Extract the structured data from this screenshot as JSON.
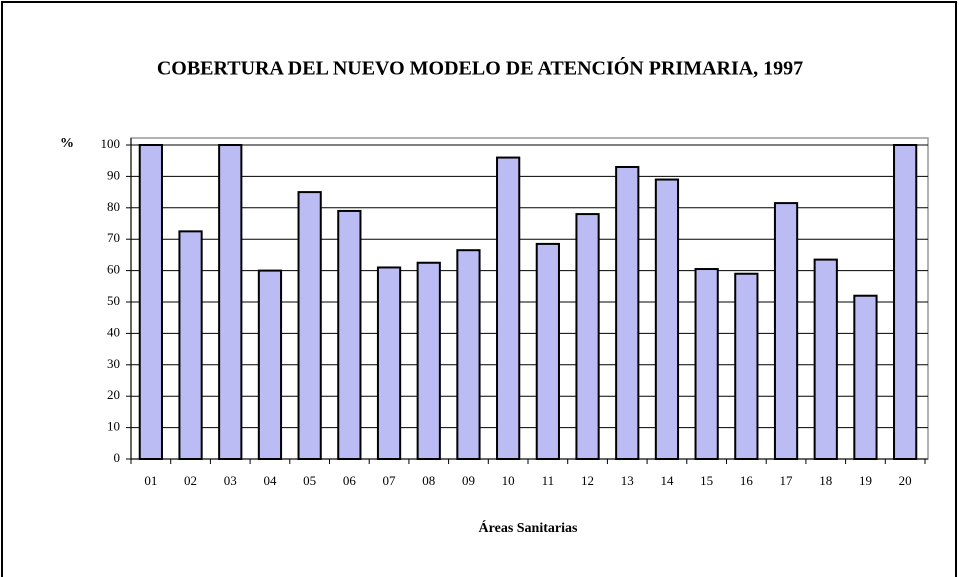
{
  "chart_data": {
    "type": "bar",
    "title": "COBERTURA DEL NUEVO MODELO DE ATENCIÓN PRIMARIA, 1997",
    "y_label": "%",
    "x_label": "Áreas Sanitarias",
    "categories": [
      "01",
      "02",
      "03",
      "04",
      "05",
      "06",
      "07",
      "08",
      "09",
      "10",
      "11",
      "12",
      "13",
      "14",
      "15",
      "16",
      "17",
      "18",
      "19",
      "20"
    ],
    "values": [
      100,
      72.5,
      100,
      60,
      85,
      79,
      61,
      62.5,
      66.5,
      96,
      68.5,
      78,
      93,
      89,
      60.5,
      59,
      81.5,
      63.5,
      52,
      100
    ],
    "color": "#bcbcf4",
    "ylim": [
      0,
      100
    ],
    "yticks": [
      0,
      10,
      20,
      30,
      40,
      50,
      60,
      70,
      80,
      90,
      100
    ],
    "grid": true
  }
}
